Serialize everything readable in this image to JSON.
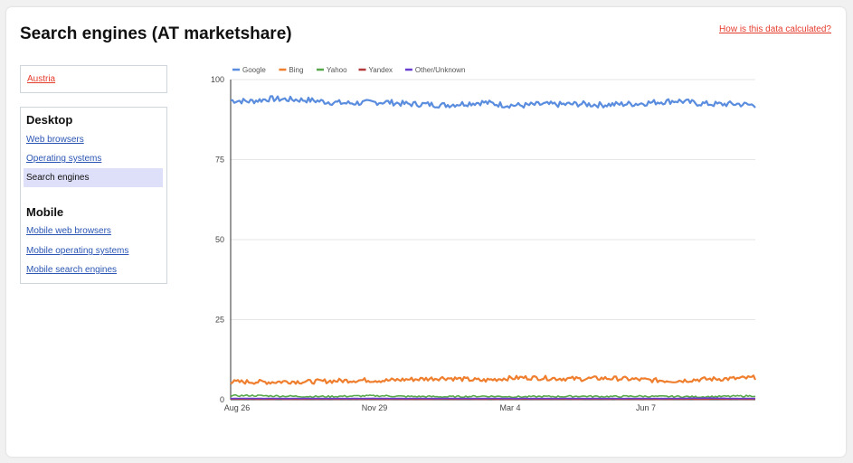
{
  "page": {
    "title": "Search engines (AT marketshare)",
    "help_link": "How is this data calculated?"
  },
  "sidebar": {
    "country": "Austria",
    "desktop_heading": "Desktop",
    "desktop_items": [
      "Web browsers",
      "Operating systems",
      "Search engines"
    ],
    "mobile_heading": "Mobile",
    "mobile_items": [
      "Mobile web browsers",
      "Mobile operating systems",
      "Mobile search engines"
    ],
    "active_item": "Search engines"
  },
  "chart_data": {
    "type": "line",
    "title": "",
    "xlabel": "",
    "ylabel": "",
    "ylim": [
      0,
      100
    ],
    "yticks": [
      0,
      25,
      50,
      75,
      100
    ],
    "x_ticks": [
      "Aug 26",
      "Nov 29",
      "Mar 4",
      "Jun 7"
    ],
    "grid": true,
    "legend_position": "top-left",
    "series": [
      {
        "name": "Google",
        "color": "#5b8ddf",
        "values": [
          93.5,
          93.2,
          94.0,
          93.8,
          93.6,
          93.0,
          92.6,
          92.8,
          93.0,
          92.4,
          92.3,
          92.0,
          92.5,
          92.9,
          92.1,
          91.9,
          92.3,
          92.2,
          92.4,
          92.1,
          92.3,
          92.5,
          93.0,
          93.4,
          92.6,
          92.3,
          92.4,
          92.0
        ]
      },
      {
        "name": "Bing",
        "color": "#ef7f2f",
        "values": [
          5.5,
          5.6,
          5.5,
          5.7,
          5.6,
          5.8,
          6.0,
          6.1,
          6.0,
          6.3,
          6.5,
          6.8,
          6.4,
          6.0,
          6.6,
          6.9,
          6.8,
          6.6,
          6.5,
          6.7,
          6.6,
          6.3,
          6.0,
          5.9,
          6.3,
          6.5,
          6.6,
          6.9
        ]
      },
      {
        "name": "Yahoo",
        "color": "#57a84a",
        "values": [
          1.2,
          1.3,
          1.2,
          1.1,
          1.0,
          1.0,
          1.1,
          1.2,
          1.2,
          1.0,
          1.0,
          0.9,
          1.0,
          1.1,
          1.0,
          0.9,
          1.0,
          1.0,
          1.1,
          1.0,
          1.0,
          1.1,
          1.0,
          1.0,
          0.9,
          1.0,
          1.1,
          1.2
        ]
      },
      {
        "name": "Yandex",
        "color": "#b23a3a",
        "values": [
          0.2,
          0.2,
          0.2,
          0.2,
          0.2,
          0.2,
          0.2,
          0.2,
          0.2,
          0.2,
          0.2,
          0.2,
          0.2,
          0.2,
          0.2,
          0.2,
          0.2,
          0.2,
          0.2,
          0.2,
          0.2,
          0.2,
          0.2,
          0.2,
          0.2,
          0.2,
          0.2,
          0.2
        ]
      },
      {
        "name": "Other/Unknown",
        "color": "#6a3fd0",
        "values": [
          0.4,
          0.4,
          0.4,
          0.4,
          0.4,
          0.4,
          0.4,
          0.4,
          0.4,
          0.4,
          0.4,
          0.4,
          0.4,
          0.4,
          0.4,
          0.4,
          0.4,
          0.4,
          0.4,
          0.4,
          0.4,
          0.4,
          0.4,
          0.4,
          0.5,
          0.5,
          0.4,
          0.4
        ]
      }
    ]
  }
}
